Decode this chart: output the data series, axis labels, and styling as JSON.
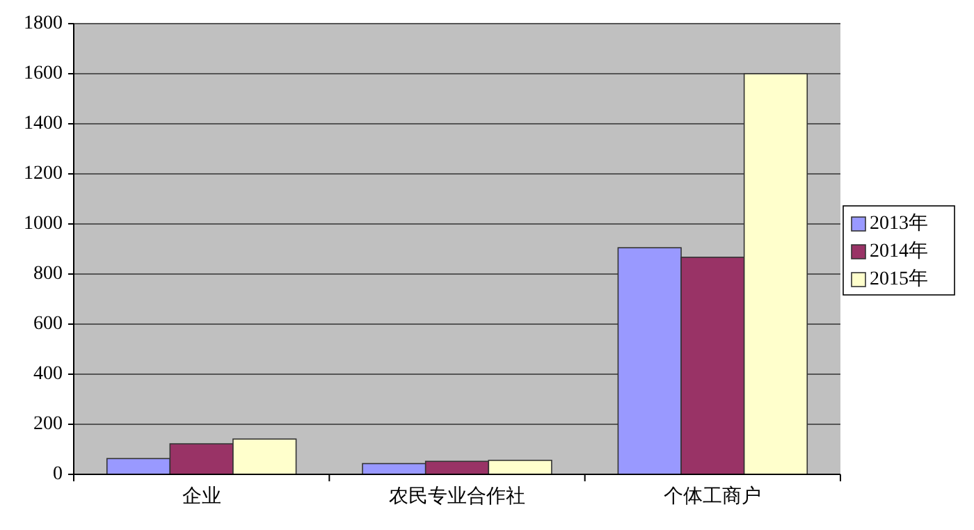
{
  "chart_data": {
    "type": "bar",
    "categories": [
      "企业",
      "农民专业合作社",
      "个体工商户"
    ],
    "series": [
      {
        "name": "2013年",
        "color": "#9999ff",
        "values": [
          63,
          43,
          905
        ]
      },
      {
        "name": "2014年",
        "color": "#993366",
        "values": [
          122,
          52,
          867
        ]
      },
      {
        "name": "2015年",
        "color": "#ffffcc",
        "values": [
          141,
          56,
          1600
        ]
      }
    ],
    "ylim": [
      0,
      1800
    ],
    "yticks": [
      0,
      200,
      400,
      600,
      800,
      1000,
      1200,
      1400,
      1600,
      1800
    ],
    "grid": "y",
    "legend": "right"
  }
}
